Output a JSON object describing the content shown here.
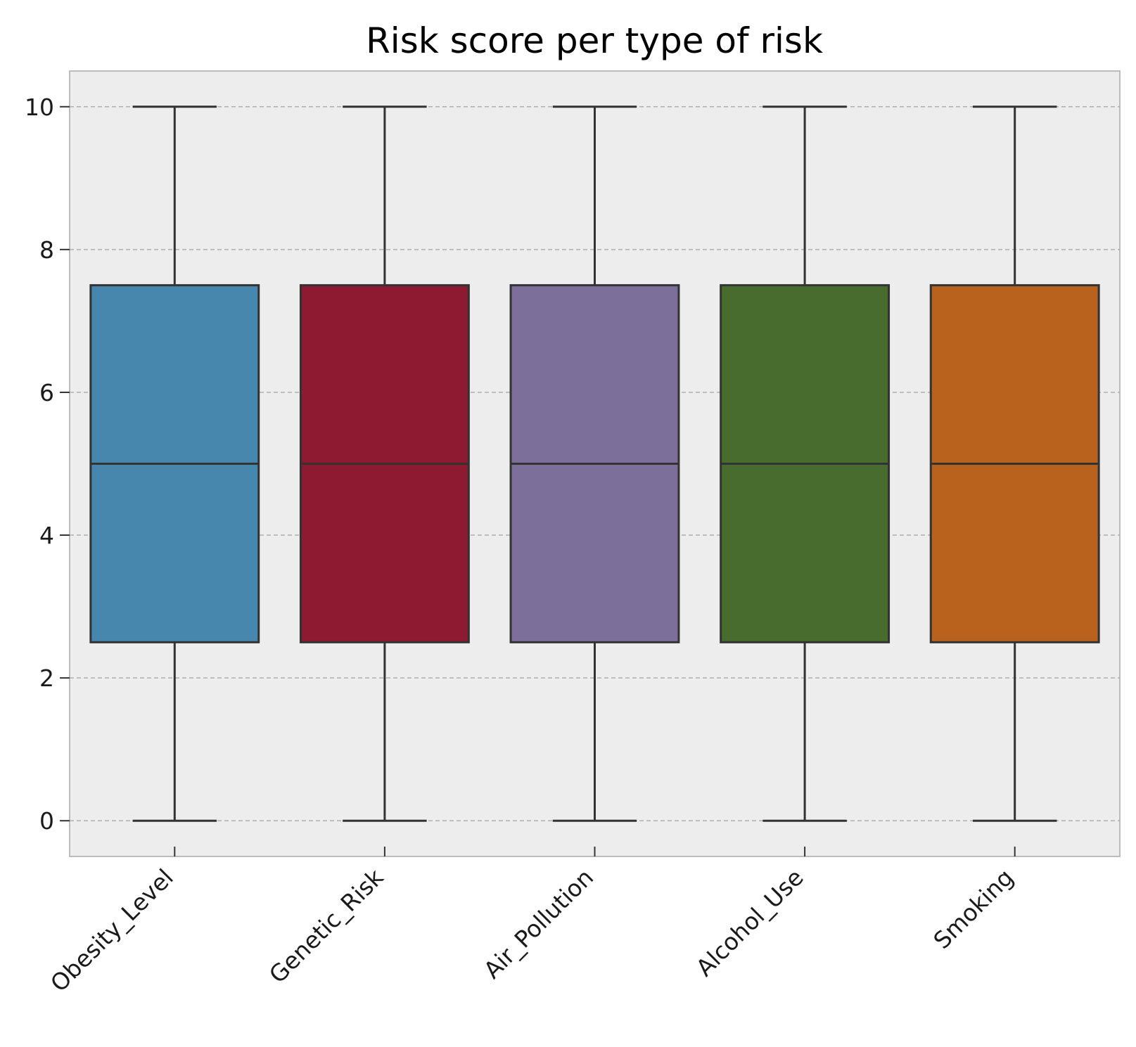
{
  "chart_data": {
    "type": "box",
    "title": "Risk score per type of risk",
    "xlabel": "",
    "ylabel": "",
    "ylim": [
      -0.5,
      10.5
    ],
    "yticks": [
      0,
      2,
      4,
      6,
      8,
      10
    ],
    "grid": "horizontal-dashed",
    "legend": "none",
    "categories": [
      "Obesity_Level",
      "Genetic_Risk",
      "Air_Pollution",
      "Alcohol_Use",
      "Smoking"
    ],
    "colors": [
      "#4786ad",
      "#8e1a32",
      "#7c709b",
      "#486c2d",
      "#b8621d"
    ],
    "boxes": [
      {
        "min": 0,
        "q1": 2.5,
        "median": 5,
        "q3": 7.5,
        "max": 10
      },
      {
        "min": 0,
        "q1": 2.5,
        "median": 5,
        "q3": 7.5,
        "max": 10
      },
      {
        "min": 0,
        "q1": 2.5,
        "median": 5,
        "q3": 7.5,
        "max": 10
      },
      {
        "min": 0,
        "q1": 2.5,
        "median": 5,
        "q3": 7.5,
        "max": 10
      },
      {
        "min": 0,
        "q1": 2.5,
        "median": 5,
        "q3": 7.5,
        "max": 10
      }
    ]
  }
}
